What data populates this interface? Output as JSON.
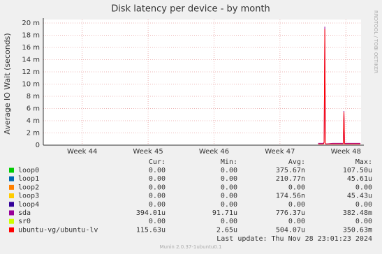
{
  "chart_data": {
    "type": "line",
    "title": "Disk latency per device - by month",
    "y_label": "Average IO Wait (seconds)",
    "side_note": "RRDTOOL / TOBI OETIKER",
    "xlim": [
      43.41,
      48.23
    ],
    "xticks": [
      {
        "value": 44,
        "label": "Week 44"
      },
      {
        "value": 45,
        "label": "Week 45"
      },
      {
        "value": 46,
        "label": "Week 46"
      },
      {
        "value": 47,
        "label": "Week 47"
      },
      {
        "value": 48,
        "label": "Week 48"
      }
    ],
    "ylim": [
      0,
      0.02
    ],
    "yticks": [
      0,
      {
        "value": 0.002,
        "label": "2 m"
      },
      {
        "value": 0.004,
        "label": "4 m"
      },
      {
        "value": 0.006,
        "label": "6 m"
      },
      {
        "value": 0.008,
        "label": "8 m"
      },
      {
        "value": 0.01,
        "label": "10 m"
      },
      {
        "value": 0.012,
        "label": "12 m"
      },
      {
        "value": 0.014,
        "label": "14 m"
      },
      {
        "value": 0.016,
        "label": "16 m"
      },
      {
        "value": 0.018,
        "label": "18 m"
      },
      {
        "value": 0.02,
        "label": "20 m"
      }
    ],
    "grid": true,
    "legend_headers": [
      "Cur:",
      "Min:",
      "Avg:",
      "Max:"
    ],
    "series": [
      {
        "name": "loop0",
        "color": "#00cc00",
        "stats": [
          "0.00",
          "0.00",
          "375.67n",
          "107.50u"
        ]
      },
      {
        "name": "loop1",
        "color": "#0066b3",
        "stats": [
          "0.00",
          "0.00",
          "210.77n",
          "45.61u"
        ]
      },
      {
        "name": "loop2",
        "color": "#ff8000",
        "stats": [
          "0.00",
          "0.00",
          "0.00",
          "0.00"
        ]
      },
      {
        "name": "loop3",
        "color": "#ffcc00",
        "stats": [
          "0.00",
          "0.00",
          "174.56n",
          "45.43u"
        ]
      },
      {
        "name": "loop4",
        "color": "#330099",
        "stats": [
          "0.00",
          "0.00",
          "0.00",
          "0.00"
        ]
      },
      {
        "name": "sda",
        "color": "#990099",
        "stats": [
          "394.01u",
          "91.71u",
          "776.37u",
          "382.48m"
        ],
        "x": [
          47.58,
          47.66,
          47.67,
          47.68,
          47.69,
          47.7,
          47.8,
          47.96,
          47.97,
          47.98,
          48.1,
          48.22
        ],
        "values": [
          0.0003,
          0.0003,
          0.0005,
          0.0194,
          0.0003,
          0.0002,
          0.0003,
          0.0003,
          0.0056,
          0.0003,
          0.0003,
          0.0003
        ]
      },
      {
        "name": "sr0",
        "color": "#ccff00",
        "stats": [
          "0.00",
          "0.00",
          "0.00",
          "0.00"
        ]
      },
      {
        "name": "ubuntu-vg/ubuntu-lv",
        "color": "#ff0000",
        "stats": [
          "115.63u",
          "2.65u",
          "504.07u",
          "350.63m"
        ],
        "x": [
          47.58,
          47.66,
          47.67,
          47.68,
          47.69,
          47.7,
          47.8,
          47.96,
          47.97,
          47.98,
          48.1,
          48.22
        ],
        "values": [
          0.0002,
          0.0002,
          0.0004,
          0.019,
          0.0002,
          0.0002,
          0.0002,
          0.0002,
          0.0054,
          0.0002,
          0.0002,
          0.0002
        ]
      }
    ],
    "last_update": "Last update: Thu Nov 28 23:01:23 2024",
    "footer": "Munin 2.0.37-1ubuntu0.1"
  }
}
